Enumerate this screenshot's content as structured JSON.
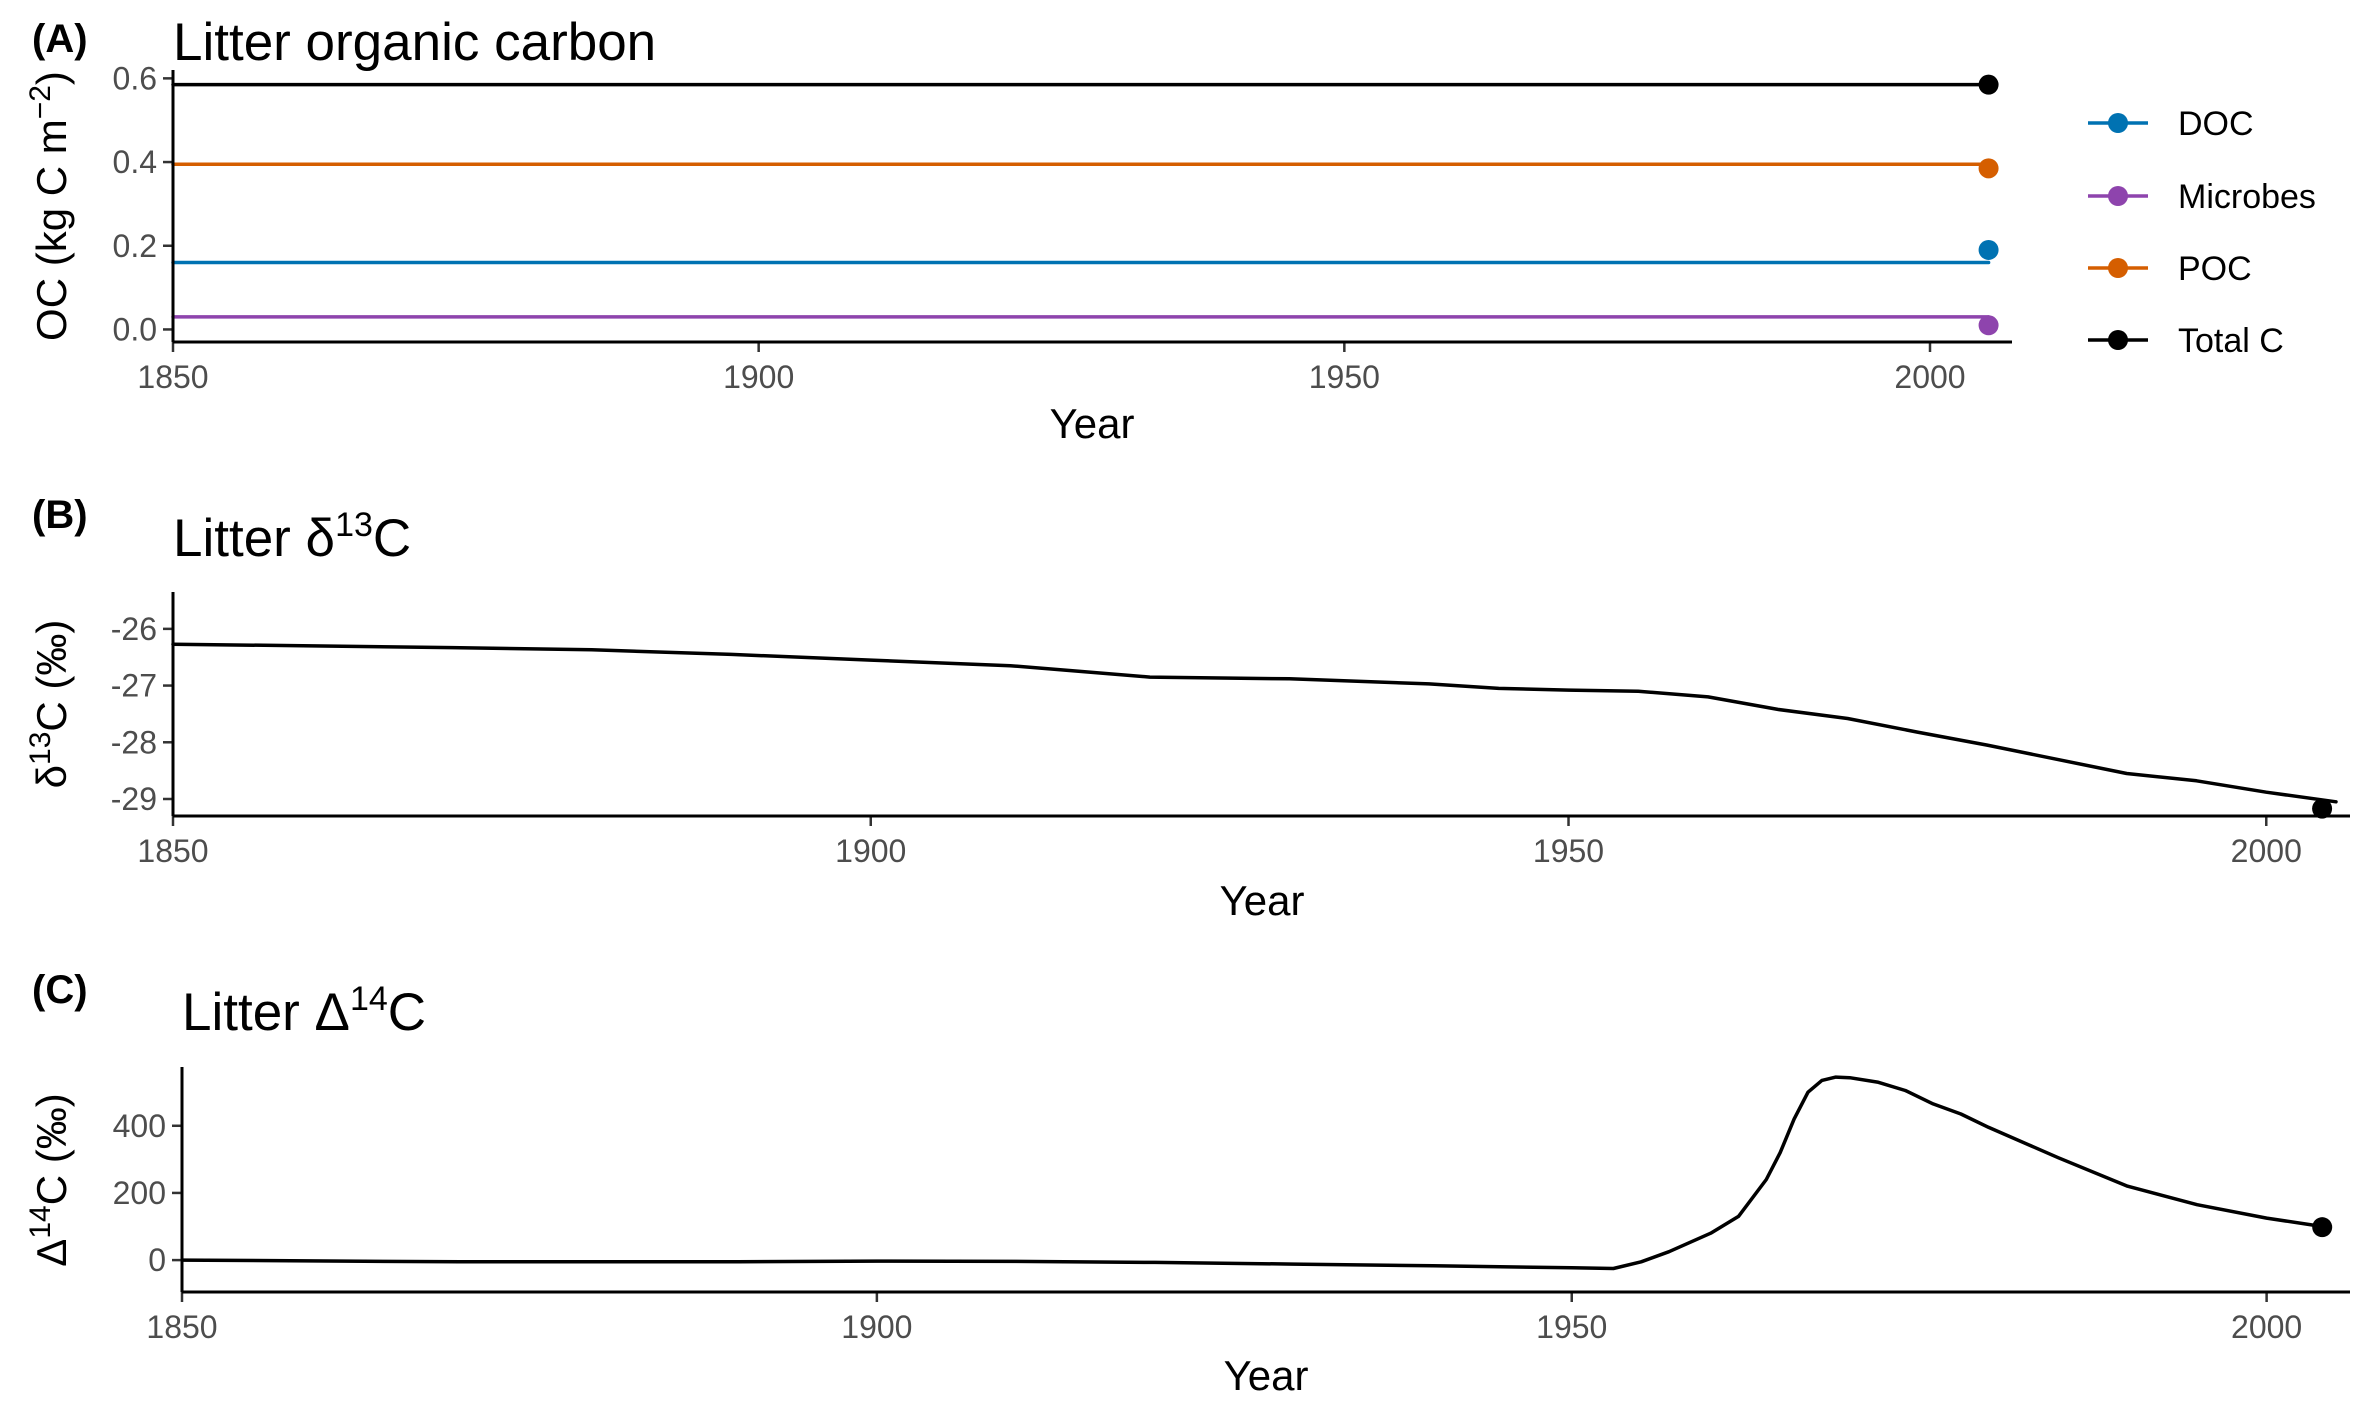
{
  "chart_data": [
    {
      "type": "line",
      "panel": "(A)",
      "title": "Litter organic carbon",
      "xlabel": "Year",
      "ylabel": "OC (kg C m",
      "ylabel_sup": "−2",
      "ylabel_end": ")",
      "xlim": [
        1850,
        2007
      ],
      "ylim": [
        -0.03,
        0.62
      ],
      "xticks": [
        1850,
        1900,
        1950,
        2000
      ],
      "yticks": [
        0.0,
        0.2,
        0.4,
        0.6
      ],
      "ytick_labels": [
        "0.0",
        "0.2",
        "0.4",
        "0.6"
      ],
      "grid": false,
      "legend": "right",
      "series": [
        {
          "name": "DOC",
          "color": "#0072B2",
          "x": [
            1850,
            2005
          ],
          "y": [
            0.16,
            0.16
          ],
          "point": [
            2005,
            0.19
          ]
        },
        {
          "name": "Microbes",
          "color": "#8E44AD",
          "x": [
            1850,
            2005
          ],
          "y": [
            0.03,
            0.03
          ],
          "point": [
            2005,
            0.01
          ]
        },
        {
          "name": "POC",
          "color": "#D55E00",
          "x": [
            1850,
            2005
          ],
          "y": [
            0.395,
            0.395
          ],
          "point": [
            2005,
            0.385
          ]
        },
        {
          "name": "Total C",
          "color": "#000000",
          "x": [
            1850,
            2005
          ],
          "y": [
            0.585,
            0.585
          ],
          "point": [
            2005,
            0.585
          ]
        }
      ]
    },
    {
      "type": "line",
      "panel": "(B)",
      "title": "Litter δ",
      "title_sup": "13",
      "title_end": "C",
      "xlabel": "Year",
      "ylabel": "δ",
      "ylabel_sup": "13",
      "ylabel_end": "C (‰)",
      "xlim": [
        1850,
        2006
      ],
      "ylim": [
        -29.3,
        -25.35
      ],
      "xticks": [
        1850,
        1900,
        1950,
        2000
      ],
      "yticks": [
        -26,
        -27,
        -28,
        -29
      ],
      "ytick_labels": [
        "-26",
        "-27",
        "-28",
        "-29"
      ],
      "grid": false,
      "series": [
        {
          "color": "#000000",
          "x": [
            1850,
            1860,
            1870,
            1880,
            1890,
            1900,
            1910,
            1915,
            1920,
            1930,
            1940,
            1945,
            1950,
            1955,
            1960,
            1965,
            1970,
            1975,
            1980,
            1985,
            1990,
            1995,
            2000,
            2005
          ],
          "y": [
            -26.27,
            -26.3,
            -26.33,
            -26.37,
            -26.45,
            -26.55,
            -26.65,
            -26.75,
            -26.85,
            -26.88,
            -26.97,
            -27.05,
            -27.08,
            -27.1,
            -27.2,
            -27.42,
            -27.58,
            -27.82,
            -28.05,
            -28.3,
            -28.55,
            -28.68,
            -28.88,
            -29.05
          ],
          "point": [
            2004,
            -29.17
          ]
        }
      ]
    },
    {
      "type": "line",
      "panel": "(C)",
      "title": "Litter Δ",
      "title_sup": "14",
      "title_end": "C",
      "xlabel": "Year",
      "ylabel": "Δ",
      "ylabel_sup": "14",
      "ylabel_end": "C (‰)",
      "xlim": [
        1850,
        2006
      ],
      "ylim": [
        -95,
        575
      ],
      "xticks": [
        1850,
        1900,
        1950,
        2000
      ],
      "yticks": [
        0,
        200,
        400
      ],
      "ytick_labels": [
        "0",
        "200",
        "400"
      ],
      "grid": false,
      "series": [
        {
          "color": "#000000",
          "x": [
            1850,
            1870,
            1890,
            1900,
            1910,
            1920,
            1930,
            1940,
            1950,
            1953,
            1955,
            1957,
            1960,
            1962,
            1964,
            1965,
            1966,
            1967,
            1968,
            1969,
            1970,
            1972,
            1974,
            1976,
            1978,
            1980,
            1985,
            1990,
            1995,
            2000,
            2004
          ],
          "y": [
            0,
            -5,
            -5,
            -3,
            -4,
            -7,
            -12,
            -17,
            -23,
            -25,
            -5,
            25,
            80,
            130,
            240,
            320,
            420,
            500,
            535,
            545,
            543,
            530,
            505,
            465,
            435,
            395,
            305,
            220,
            165,
            125,
            100
          ],
          "point": [
            2004,
            98
          ]
        }
      ]
    }
  ]
}
